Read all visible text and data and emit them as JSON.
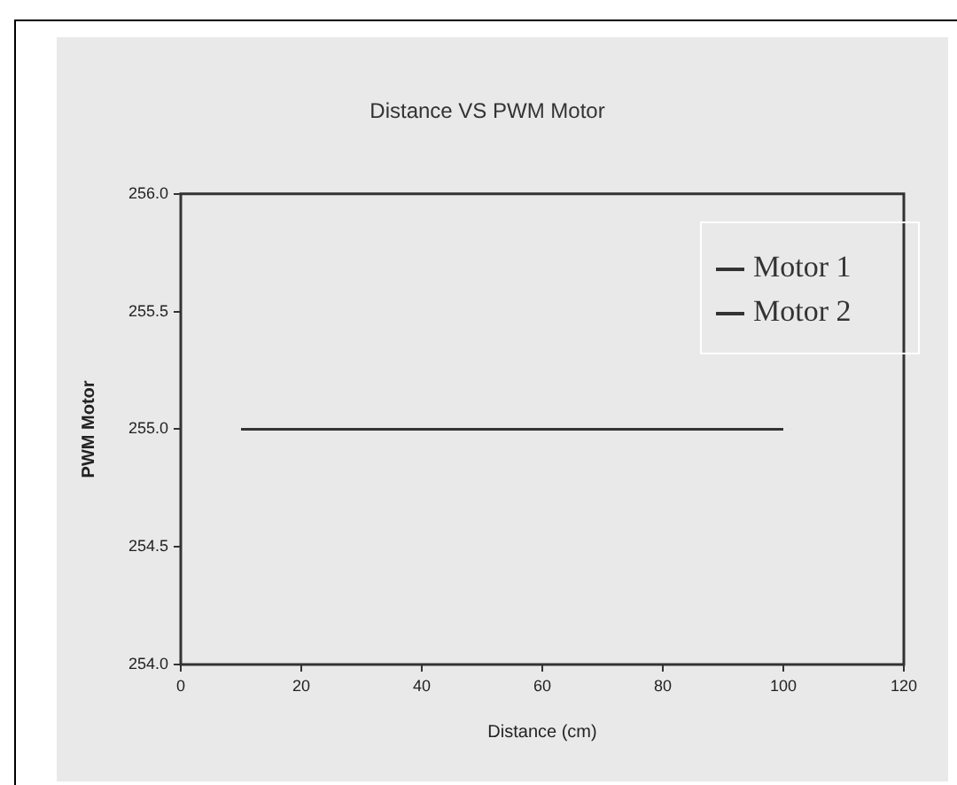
{
  "chart_data": {
    "type": "line",
    "title": "Distance VS PWM Motor",
    "xlabel": "Distance (cm)",
    "ylabel": "PWM Motor",
    "series": [
      {
        "name": "Motor 1",
        "color": "#333333",
        "values": [
          null,
          null
        ]
      },
      {
        "name": "Motor 2",
        "color": "#333333",
        "x": [
          10,
          100
        ],
        "values": [
          255,
          255
        ]
      }
    ],
    "xlim": [
      0,
      120
    ],
    "xticks": [
      0,
      20,
      40,
      60,
      80,
      100,
      120
    ],
    "ylim": [
      254,
      256
    ],
    "yticks": [
      {
        "value": 254,
        "label": "254.0"
      },
      {
        "value": 254.5,
        "label": "254.5"
      },
      {
        "value": 255,
        "label": "255.0"
      },
      {
        "value": 255.5,
        "label": "255.5"
      },
      {
        "value": 256,
        "label": "256.0"
      }
    ],
    "grid": false,
    "legend": "top right",
    "marker": "none",
    "line_style": "solid"
  }
}
